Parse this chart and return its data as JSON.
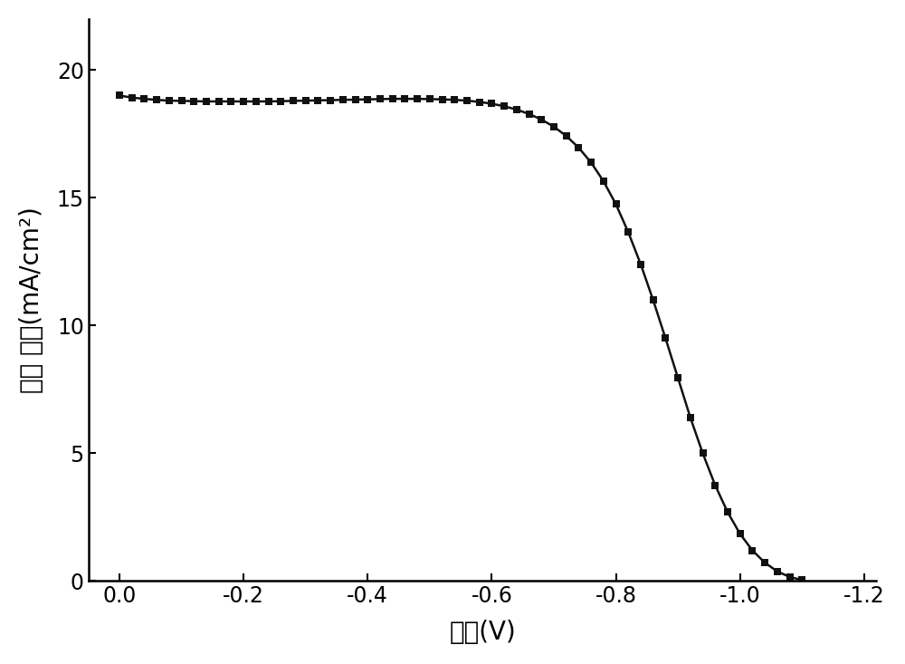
{
  "title": "",
  "xlabel": "电压(V)",
  "ylabel": "电流 密度(mA/cm²)",
  "xlim_left": 0.05,
  "xlim_right": -1.22,
  "ylim": [
    0,
    22
  ],
  "yticks": [
    0,
    5,
    10,
    15,
    20
  ],
  "xticks": [
    0.0,
    -0.2,
    -0.4,
    -0.6,
    -0.8,
    -1.0,
    -1.2
  ],
  "background_color": "#ffffff",
  "line_color": "#111111",
  "marker": "s",
  "marker_size": 6,
  "xlabel_fontsize": 20,
  "ylabel_fontsize": 20,
  "tick_fontsize": 17,
  "curve_data": {
    "v": [
      0.0,
      -0.02,
      -0.04,
      -0.06,
      -0.08,
      -0.1,
      -0.12,
      -0.14,
      -0.16,
      -0.18,
      -0.2,
      -0.22,
      -0.24,
      -0.26,
      -0.28,
      -0.3,
      -0.32,
      -0.34,
      -0.36,
      -0.38,
      -0.4,
      -0.42,
      -0.44,
      -0.46,
      -0.48,
      -0.5,
      -0.52,
      -0.54,
      -0.56,
      -0.58,
      -0.6,
      -0.62,
      -0.64,
      -0.66,
      -0.68,
      -0.7,
      -0.72,
      -0.74,
      -0.76,
      -0.78,
      -0.8,
      -0.82,
      -0.84,
      -0.86,
      -0.88,
      -0.9,
      -0.92,
      -0.94,
      -0.96,
      -0.98,
      -1.0,
      -1.02,
      -1.04,
      -1.06,
      -1.08,
      -1.1
    ],
    "j": [
      19.0,
      18.92,
      18.87,
      18.83,
      18.8,
      18.79,
      18.78,
      18.77,
      18.77,
      18.77,
      18.77,
      18.77,
      18.77,
      18.78,
      18.79,
      18.8,
      18.81,
      18.82,
      18.83,
      18.84,
      18.85,
      18.86,
      18.87,
      18.87,
      18.87,
      18.86,
      18.85,
      18.83,
      18.8,
      18.75,
      18.68,
      18.58,
      18.45,
      18.28,
      18.06,
      17.78,
      17.42,
      16.96,
      16.38,
      15.65,
      14.75,
      13.65,
      12.4,
      11.0,
      9.5,
      7.95,
      6.4,
      5.0,
      3.75,
      2.7,
      1.85,
      1.2,
      0.72,
      0.38,
      0.16,
      0.04
    ]
  }
}
